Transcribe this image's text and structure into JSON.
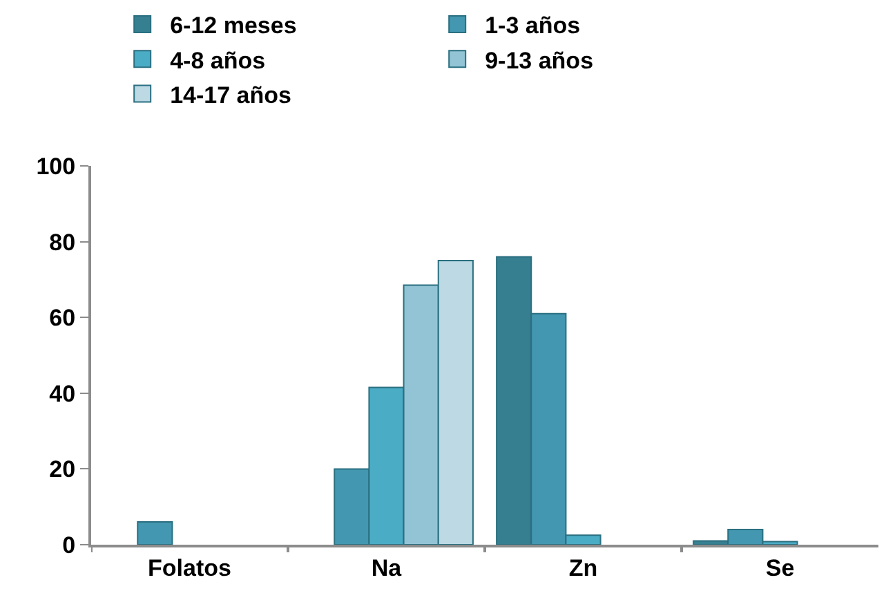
{
  "chart_data": {
    "type": "bar",
    "categories": [
      "Folatos",
      "Na",
      "Zn",
      "Se"
    ],
    "series": [
      {
        "name": "6-12 meses",
        "color": "#367f91",
        "values": [
          null,
          null,
          76,
          1
        ]
      },
      {
        "name": "1-3 años",
        "color": "#4397b0",
        "values": [
          6,
          20,
          61,
          4
        ]
      },
      {
        "name": "4-8 años",
        "color": "#4bacc6",
        "values": [
          null,
          41.5,
          2.5,
          0.8
        ]
      },
      {
        "name": "9-13 años",
        "color": "#93c4d5",
        "values": [
          null,
          68.5,
          null,
          null
        ]
      },
      {
        "name": "14-17 años",
        "color": "#bcd9e4",
        "values": [
          null,
          75,
          null,
          null
        ]
      }
    ],
    "ylim": [
      0,
      100
    ],
    "yticks": [
      0,
      20,
      40,
      60,
      80,
      100
    ],
    "legend": "top"
  }
}
